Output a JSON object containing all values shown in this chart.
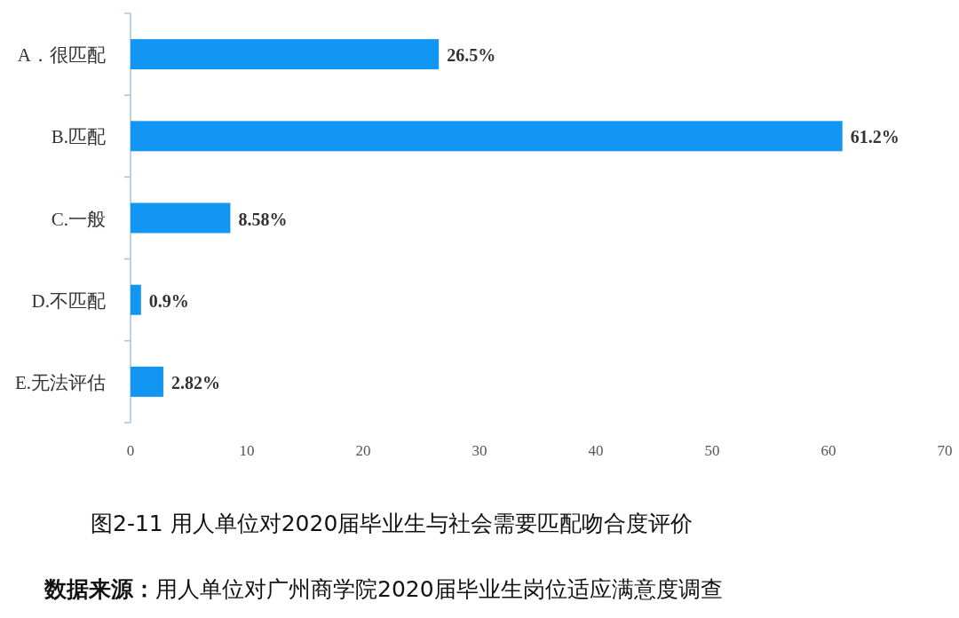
{
  "chart_data": {
    "type": "bar",
    "orientation": "horizontal",
    "categories": [
      "A．很匹配",
      "B.匹配",
      "C.一般",
      "D.不匹配",
      "E.无法评估"
    ],
    "values": [
      26.5,
      61.2,
      8.58,
      0.9,
      2.82
    ],
    "value_labels": [
      "26.5%",
      "61.2%",
      "8.58%",
      "0.9%",
      "2.82%"
    ],
    "color": "#1296f3",
    "xlim": [
      0,
      70
    ],
    "xticks": [
      0,
      10,
      20,
      30,
      40,
      50,
      60,
      70
    ],
    "grid": false,
    "annotations": [
      "图2-11  用人单位对2020届毕业生与社会需要匹配吻合度评价",
      "数据来源：用人单位对广州商学院2020届毕业生岗位适应满意度调查"
    ]
  }
}
